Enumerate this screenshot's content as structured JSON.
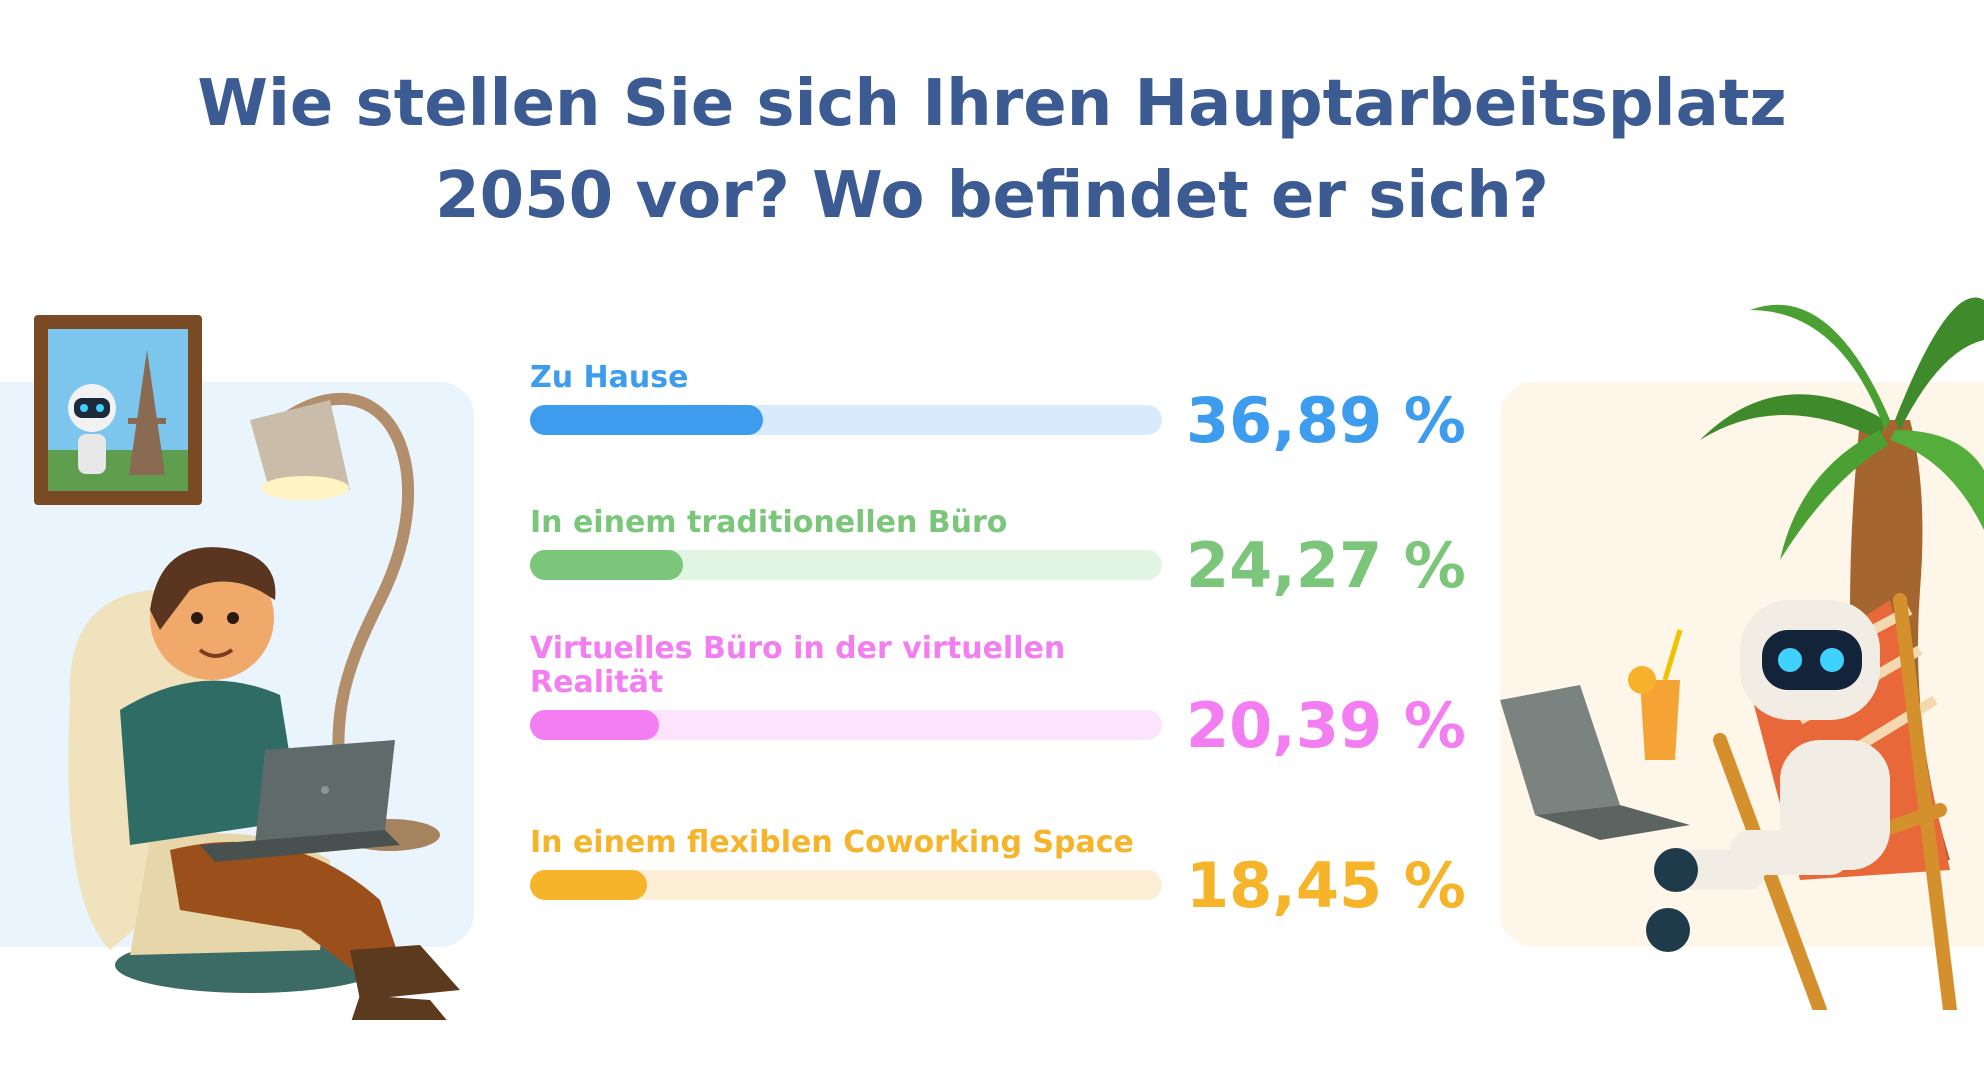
{
  "title_lines": [
    "Wie stellen Sie sich Ihren Hauptarbeitsplatz",
    "2050 vor? Wo befindet er sich?"
  ],
  "chart_data": {
    "type": "bar",
    "orientation": "horizontal",
    "title": "Wie stellen Sie sich Ihren Hauptarbeitsplatz 2050 vor? Wo befindet er sich?",
    "xlim": [
      0,
      100
    ],
    "grid": false,
    "categories": [
      "Zu Hause",
      "In einem traditionellen Büro",
      "Virtuelles Büro in der virtuellen Realität",
      "In einem flexiblen Coworking Space"
    ],
    "values": [
      36.89,
      24.27,
      20.39,
      18.45
    ],
    "value_labels": [
      "36,89 %",
      "24,27 %",
      "20,39 %",
      "18,45 %"
    ],
    "colors": [
      "#3d9cee",
      "#7bc67a",
      "#f27ef2",
      "#f6b42a"
    ],
    "track_colors": [
      "#d8ebfc",
      "#e2f4e2",
      "#fde4fd",
      "#fdefd6"
    ]
  },
  "illustrations": {
    "left": "man-working-on-laptop-in-armchair",
    "right": "robot-with-laptop-on-beach-chair-under-palm"
  },
  "colors": {
    "title": "#3b5b92",
    "panel_left": "#eaf4fd",
    "panel_right": "#fdf6e9"
  }
}
